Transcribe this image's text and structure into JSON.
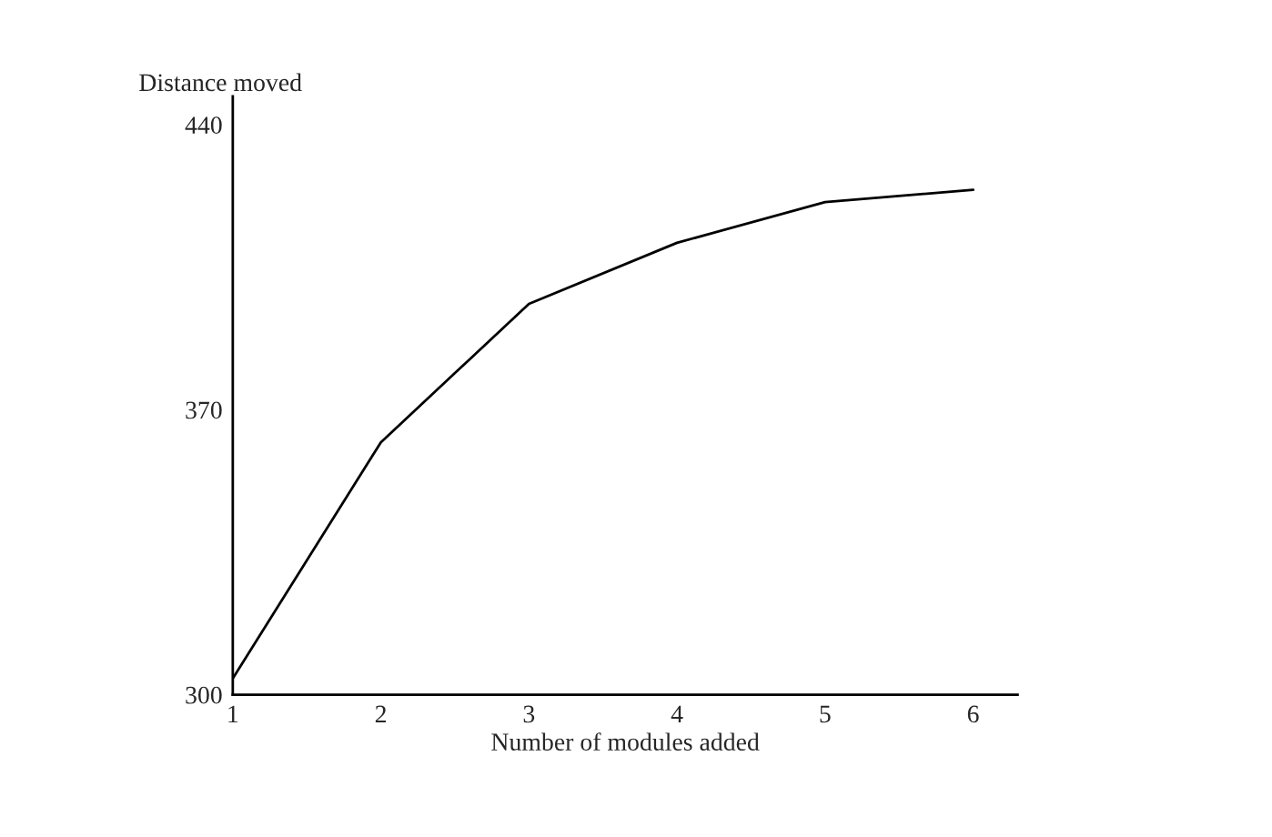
{
  "chart_data": {
    "type": "line",
    "xlabel": "Number of modules added",
    "ylabel": "Distance moved",
    "x": [
      1,
      2,
      3,
      4,
      5,
      6
    ],
    "series": [
      {
        "color": "#000000",
        "values": [
          304,
          362,
          396,
          411,
          421,
          424
        ]
      }
    ],
    "xlim": [
      1,
      6.3
    ],
    "ylim": [
      300,
      447
    ],
    "xticks": [
      1,
      2,
      3,
      4,
      5,
      6
    ],
    "yticks": [
      300,
      370,
      440
    ],
    "grid": false,
    "marker": "none",
    "line_style": "solid"
  }
}
